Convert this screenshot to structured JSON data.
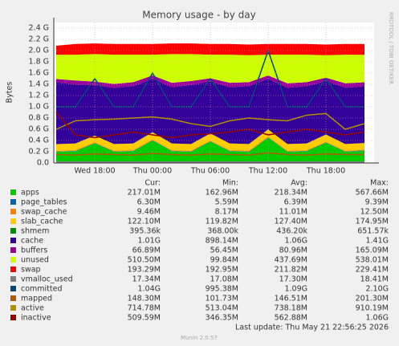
{
  "chart_data": {
    "type": "area",
    "title": "Memory usage - by day",
    "y_label": "Bytes",
    "side_label": "RRDTOOL / TOBI OETIKER",
    "last_update": "Last update: Thu May 21 22:56:25 2026",
    "footer": "Munin 2.0.57",
    "legend_headers": [
      "Cur:",
      "Min:",
      "Avg:",
      "Max:"
    ],
    "grid": true,
    "xlim": [
      13.75,
      47
    ],
    "xticks": [
      {
        "value": 18,
        "label": "Wed 18:00"
      },
      {
        "value": 24,
        "label": "Thu 00:00"
      },
      {
        "value": 30,
        "label": "Thu 06:00"
      },
      {
        "value": 36,
        "label": "Thu 12:00"
      },
      {
        "value": 42,
        "label": "Thu 18:00"
      }
    ],
    "ylim": [
      0,
      2.5
    ],
    "yticks": [
      {
        "value": 0,
        "label": "0.0"
      },
      {
        "value": 0.2,
        "label": "0.2 G"
      },
      {
        "value": 0.4,
        "label": "0.4 G"
      },
      {
        "value": 0.6,
        "label": "0.6 G"
      },
      {
        "value": 0.8,
        "label": "0.8 G"
      },
      {
        "value": 1,
        "label": "1.0 G"
      },
      {
        "value": 1.2,
        "label": "1.2 G"
      },
      {
        "value": 1.4,
        "label": "1.4 G"
      },
      {
        "value": 1.6,
        "label": "1.6 G"
      },
      {
        "value": 1.8,
        "label": "1.8 G"
      },
      {
        "value": 2,
        "label": "2.0 G"
      },
      {
        "value": 2.2,
        "label": "2.2 G"
      },
      {
        "value": 2.4,
        "label": "2.4 G"
      }
    ],
    "x": [
      14,
      16,
      18,
      20,
      22,
      24,
      26,
      28,
      30,
      32,
      34,
      36,
      38,
      40,
      42,
      44,
      46
    ],
    "series": [
      {
        "name": "apps",
        "color": "#00cc00",
        "draw": "stack",
        "cur": "217.01M",
        "min": "162.96M",
        "avg": "218.34M",
        "max": "567.66M",
        "values": [
          0.2,
          0.21,
          0.35,
          0.2,
          0.21,
          0.4,
          0.21,
          0.2,
          0.38,
          0.21,
          0.2,
          0.45,
          0.2,
          0.21,
          0.36,
          0.2,
          0.22
        ]
      },
      {
        "name": "page_tables",
        "color": "#0066b3",
        "draw": "stack",
        "cur": "6.30M",
        "min": "5.59M",
        "avg": "6.39M",
        "max": "9.39M",
        "values": [
          0.006,
          0.006,
          0.006,
          0.006,
          0.006,
          0.006,
          0.006,
          0.006,
          0.006,
          0.006,
          0.006,
          0.006,
          0.006,
          0.006,
          0.006,
          0.006,
          0.006
        ]
      },
      {
        "name": "swap_cache",
        "color": "#ff8000",
        "draw": "stack",
        "cur": "9.46M",
        "min": "8.17M",
        "avg": "11.01M",
        "max": "12.50M",
        "values": [
          0.009,
          0.011,
          0.011,
          0.011,
          0.011,
          0.011,
          0.011,
          0.011,
          0.011,
          0.011,
          0.011,
          0.011,
          0.011,
          0.011,
          0.011,
          0.011,
          0.009
        ]
      },
      {
        "name": "slab_cache",
        "color": "#ffcc00",
        "draw": "stack",
        "cur": "122.10M",
        "min": "119.82M",
        "avg": "127.40M",
        "max": "174.95M",
        "values": [
          0.12,
          0.12,
          0.12,
          0.12,
          0.12,
          0.13,
          0.12,
          0.12,
          0.13,
          0.12,
          0.12,
          0.13,
          0.12,
          0.12,
          0.13,
          0.12,
          0.12
        ]
      },
      {
        "name": "shmem",
        "color": "#008f00",
        "draw": "stack",
        "cur": "395.36k",
        "min": "368.00k",
        "avg": "436.20k",
        "max": "651.57k",
        "values": [
          0.0004,
          0.0004,
          0.0004,
          0.0004,
          0.0004,
          0.0004,
          0.0004,
          0.0004,
          0.0004,
          0.0004,
          0.0004,
          0.0004,
          0.0004,
          0.0004,
          0.0004,
          0.0004,
          0.0004
        ]
      },
      {
        "name": "cache",
        "color": "#330099",
        "draw": "stack",
        "cur": "1.01G",
        "min": "898.14M",
        "avg": "1.06G",
        "max": "1.41G",
        "values": [
          1.1,
          1.05,
          0.9,
          1.0,
          1.02,
          0.95,
          1.0,
          1.05,
          0.92,
          1.0,
          1.03,
          0.9,
          1.0,
          1.02,
          0.95,
          1.0,
          1.01
        ]
      },
      {
        "name": "buffers",
        "color": "#990099",
        "draw": "stack",
        "cur": "66.89M",
        "min": "56.45M",
        "avg": "80.96M",
        "max": "165.09M",
        "values": [
          0.06,
          0.07,
          0.06,
          0.07,
          0.07,
          0.06,
          0.08,
          0.07,
          0.06,
          0.08,
          0.07,
          0.06,
          0.08,
          0.07,
          0.06,
          0.08,
          0.07
        ]
      },
      {
        "name": "unused",
        "color": "#ccff00",
        "draw": "stack",
        "cur": "510.50M",
        "min": "99.84M",
        "avg": "437.69M",
        "max": "538.01M",
        "values": [
          0.43,
          0.46,
          0.49,
          0.52,
          0.49,
          0.37,
          0.51,
          0.48,
          0.42,
          0.5,
          0.48,
          0.37,
          0.51,
          0.49,
          0.4,
          0.51,
          0.49
        ]
      },
      {
        "name": "swap",
        "color": "#ff0000",
        "draw": "stack",
        "cur": "193.29M",
        "min": "192.95M",
        "avg": "211.82M",
        "max": "229.41M",
        "values": [
          0.16,
          0.19,
          0.19,
          0.19,
          0.19,
          0.19,
          0.19,
          0.19,
          0.19,
          0.19,
          0.19,
          0.19,
          0.19,
          0.19,
          0.19,
          0.19,
          0.19
        ]
      },
      {
        "name": "vmalloc_used",
        "color": "#808080",
        "draw": "line",
        "cur": "17.34M",
        "min": "17.08M",
        "avg": "17.30M",
        "max": "18.41M",
        "values": [
          0.017,
          0.017,
          0.017,
          0.017,
          0.017,
          0.017,
          0.017,
          0.017,
          0.017,
          0.017,
          0.017,
          0.017,
          0.017,
          0.017,
          0.017,
          0.017,
          0.017
        ]
      },
      {
        "name": "committed",
        "color": "#00487d",
        "draw": "line",
        "cur": "1.04G",
        "min": "995.38M",
        "avg": "1.09G",
        "max": "2.10G",
        "values": [
          1.0,
          1.0,
          1.5,
          1.0,
          1.0,
          1.6,
          1.0,
          1.0,
          1.5,
          1.0,
          1.0,
          2.0,
          1.0,
          1.0,
          1.5,
          1.0,
          1.0
        ]
      },
      {
        "name": "mapped",
        "color": "#b35a00",
        "draw": "line",
        "cur": "148.30M",
        "min": "101.73M",
        "avg": "146.51M",
        "max": "201.30M",
        "values": [
          0.15,
          0.14,
          0.16,
          0.15,
          0.14,
          0.17,
          0.15,
          0.14,
          0.16,
          0.15,
          0.14,
          0.18,
          0.15,
          0.14,
          0.16,
          0.15,
          0.15
        ]
      },
      {
        "name": "active",
        "color": "#b38f00",
        "draw": "line",
        "cur": "714.78M",
        "min": "513.04M",
        "avg": "738.18M",
        "max": "910.19M",
        "values": [
          0.6,
          0.75,
          0.77,
          0.78,
          0.8,
          0.82,
          0.78,
          0.7,
          0.65,
          0.75,
          0.8,
          0.77,
          0.75,
          0.85,
          0.88,
          0.6,
          0.7
        ]
      },
      {
        "name": "inactive",
        "color": "#990000",
        "draw": "line",
        "cur": "509.59M",
        "min": "346.35M",
        "avg": "562.88M",
        "max": "1.06G",
        "values": [
          0.9,
          0.5,
          0.45,
          0.5,
          0.55,
          0.5,
          0.45,
          0.5,
          0.52,
          0.55,
          0.6,
          0.5,
          0.55,
          0.6,
          0.55,
          0.5,
          0.55
        ]
      }
    ]
  }
}
